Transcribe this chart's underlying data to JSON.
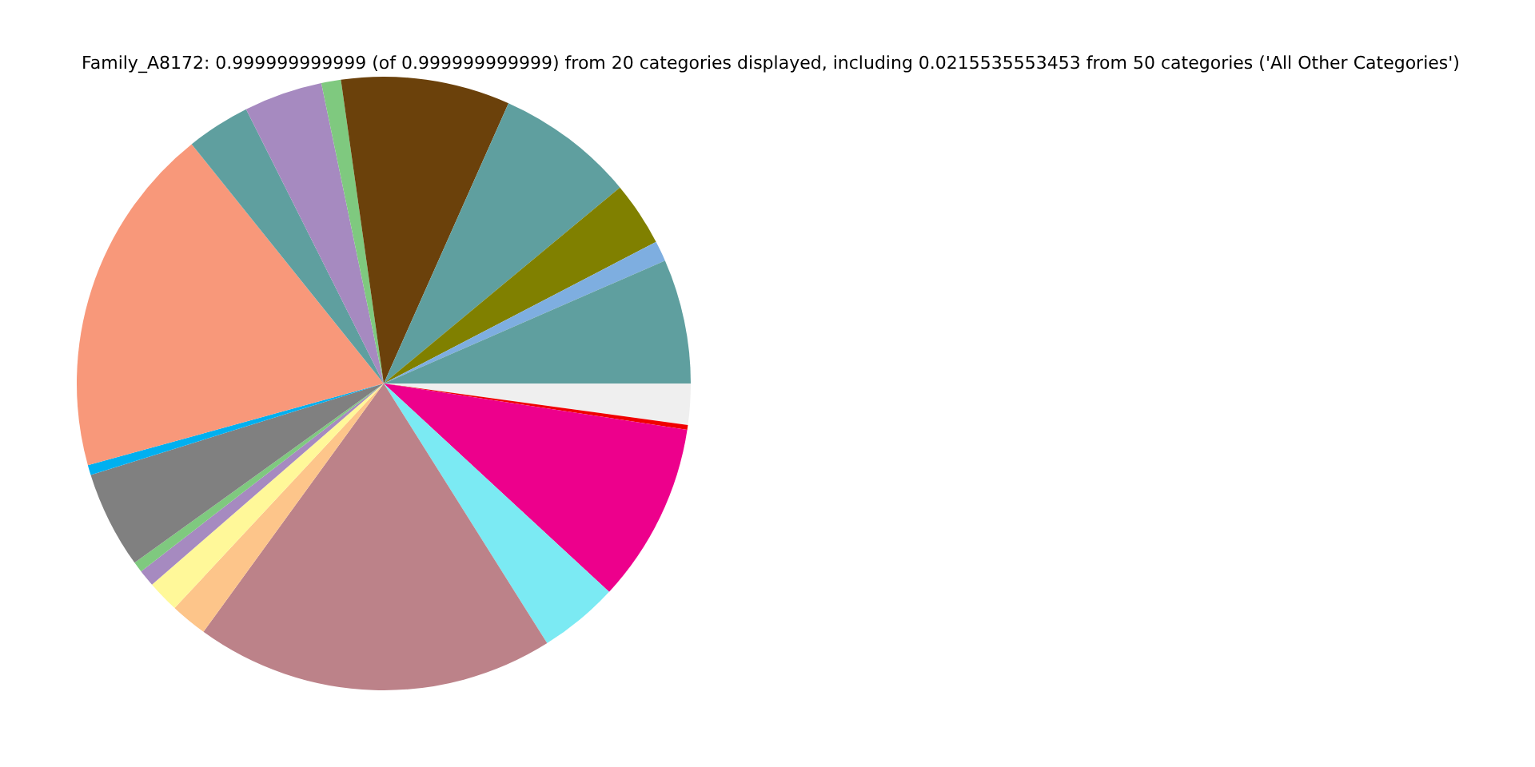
{
  "chart_data": {
    "type": "pie",
    "title": "Family_A8172: 0.999999999999 (of 0.999999999999) from 20 categories displayed, including 0.0215535553453 from 50 categories ('All Other Categories')",
    "categories": [
      null,
      null,
      null,
      null,
      null,
      null,
      null,
      null,
      null,
      null,
      null,
      null,
      null,
      null,
      null,
      null,
      null,
      null,
      null,
      null
    ],
    "values": [
      2.16,
      0.25,
      9.47,
      4.19,
      18.92,
      1.94,
      1.69,
      0.89,
      0.56,
      5.11,
      0.53,
      18.53,
      3.36,
      4.14,
      1.03,
      8.89,
      7.31,
      3.39,
      1.08,
      6.56
    ],
    "colors": [
      "#efefef",
      "#f00000",
      "#ed008c",
      "#7beaf3",
      "#bc8289",
      "#fdc58a",
      "#fff899",
      "#a68ac0",
      "#7fc97f",
      "#808080",
      "#00b0f0",
      "#f8987a",
      "#5f9f9f",
      "#a68ac0",
      "#7fc97f",
      "#6b410b",
      "#5f9f9f",
      "#808000",
      "#7eaee0",
      "#5f9f9f"
    ],
    "legend": false
  }
}
